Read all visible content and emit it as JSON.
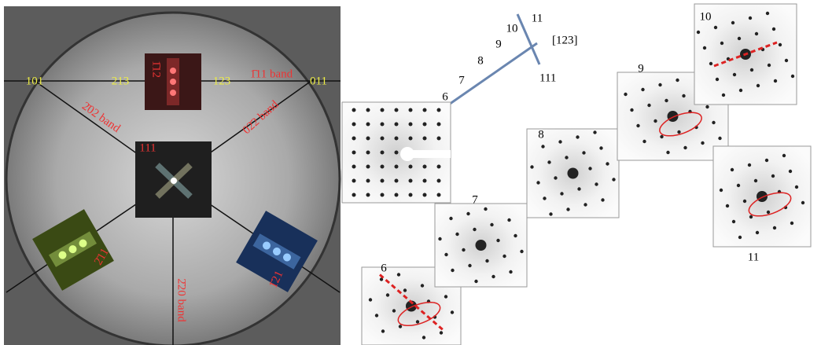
{
  "kikuchi_map": {
    "labels": [
      "101",
      "213",
      "123",
      "011",
      "1̄12",
      "1̄11 band",
      "2̄02 band",
      "02̄2 band",
      "111",
      "2̄11",
      "1̄21",
      "2̄20 band"
    ]
  },
  "tilt_trace": {
    "step_labels": [
      "6",
      "7",
      "8",
      "9",
      "10",
      "11"
    ],
    "zone_axis": "[123]",
    "pole": "111"
  },
  "patterns": {
    "labels": [
      "6",
      "7",
      "8",
      "9",
      "10",
      "11"
    ]
  }
}
